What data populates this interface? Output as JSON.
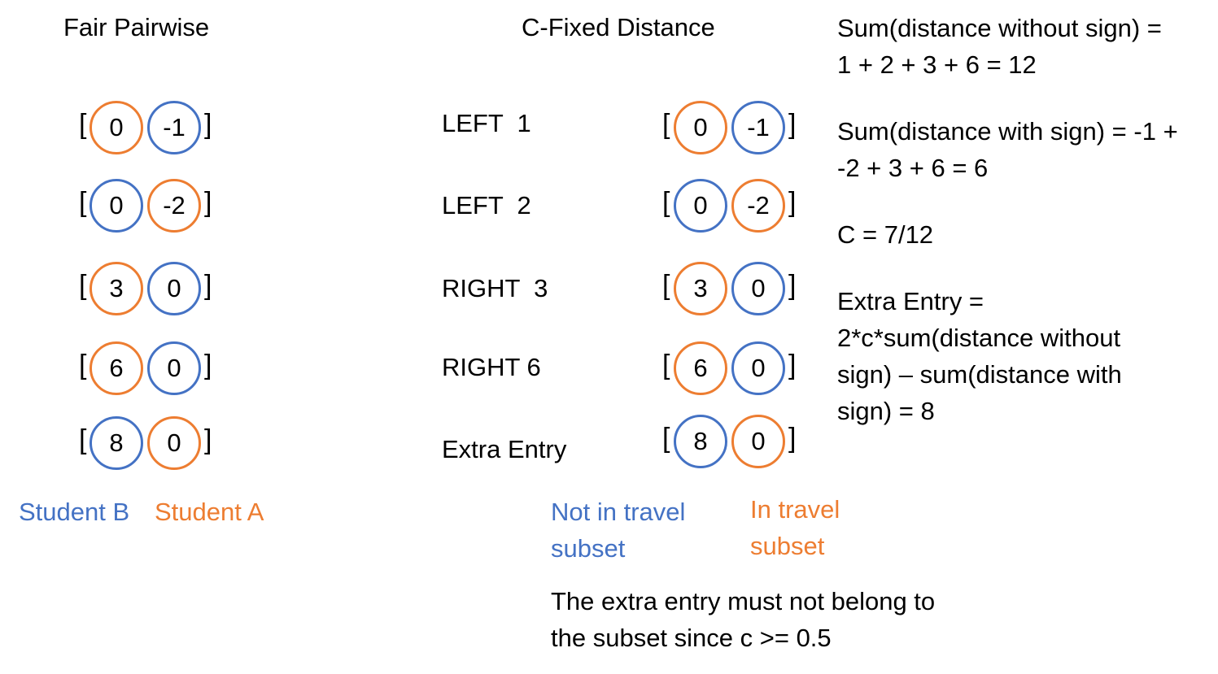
{
  "colors": {
    "blue": "#4472C4",
    "orange": "#ED7D31"
  },
  "titles": {
    "left": "Fair Pairwise",
    "middle": "C-Fixed Distance"
  },
  "fair_pairwise": [
    {
      "first": {
        "value": "0",
        "color": "orange"
      },
      "second": {
        "value": "-1",
        "color": "blue"
      }
    },
    {
      "first": {
        "value": "0",
        "color": "blue"
      },
      "second": {
        "value": "-2",
        "color": "orange"
      }
    },
    {
      "first": {
        "value": "3",
        "color": "orange"
      },
      "second": {
        "value": "0",
        "color": "blue"
      }
    },
    {
      "first": {
        "value": "6",
        "color": "orange"
      },
      "second": {
        "value": "0",
        "color": "blue"
      }
    },
    {
      "first": {
        "value": "8",
        "color": "blue"
      },
      "second": {
        "value": "0",
        "color": "orange"
      }
    }
  ],
  "c_fixed": [
    {
      "label": "LEFT  1",
      "first": {
        "value": "0",
        "color": "orange"
      },
      "second": {
        "value": "-1",
        "color": "blue"
      }
    },
    {
      "label": "LEFT  2",
      "first": {
        "value": "0",
        "color": "blue"
      },
      "second": {
        "value": "-2",
        "color": "orange"
      }
    },
    {
      "label": "RIGHT  3",
      "first": {
        "value": "3",
        "color": "orange"
      },
      "second": {
        "value": "0",
        "color": "blue"
      }
    },
    {
      "label": "RIGHT 6",
      "first": {
        "value": "6",
        "color": "orange"
      },
      "second": {
        "value": "0",
        "color": "blue"
      }
    },
    {
      "label": "Extra Entry",
      "first": {
        "value": "8",
        "color": "blue"
      },
      "second": {
        "value": "0",
        "color": "orange"
      }
    }
  ],
  "bracket_open": "[",
  "bracket_close": "]",
  "legend_left": {
    "blue": "Student B",
    "orange": "Student A"
  },
  "legend_middle": {
    "blue": "Not in travel subset",
    "orange": "In travel subset"
  },
  "footnote": "The extra entry must not belong to the subset since c >= 0.5",
  "notes": [
    "Sum(distance without sign) = 1 + 2 + 3 + 6 = 12",
    "Sum(distance with sign) = -1 + -2 + 3 + 6 = 6",
    "C = 7/12",
    "Extra Entry = 2*c*sum(distance without sign) – sum(distance with sign) = 8"
  ]
}
